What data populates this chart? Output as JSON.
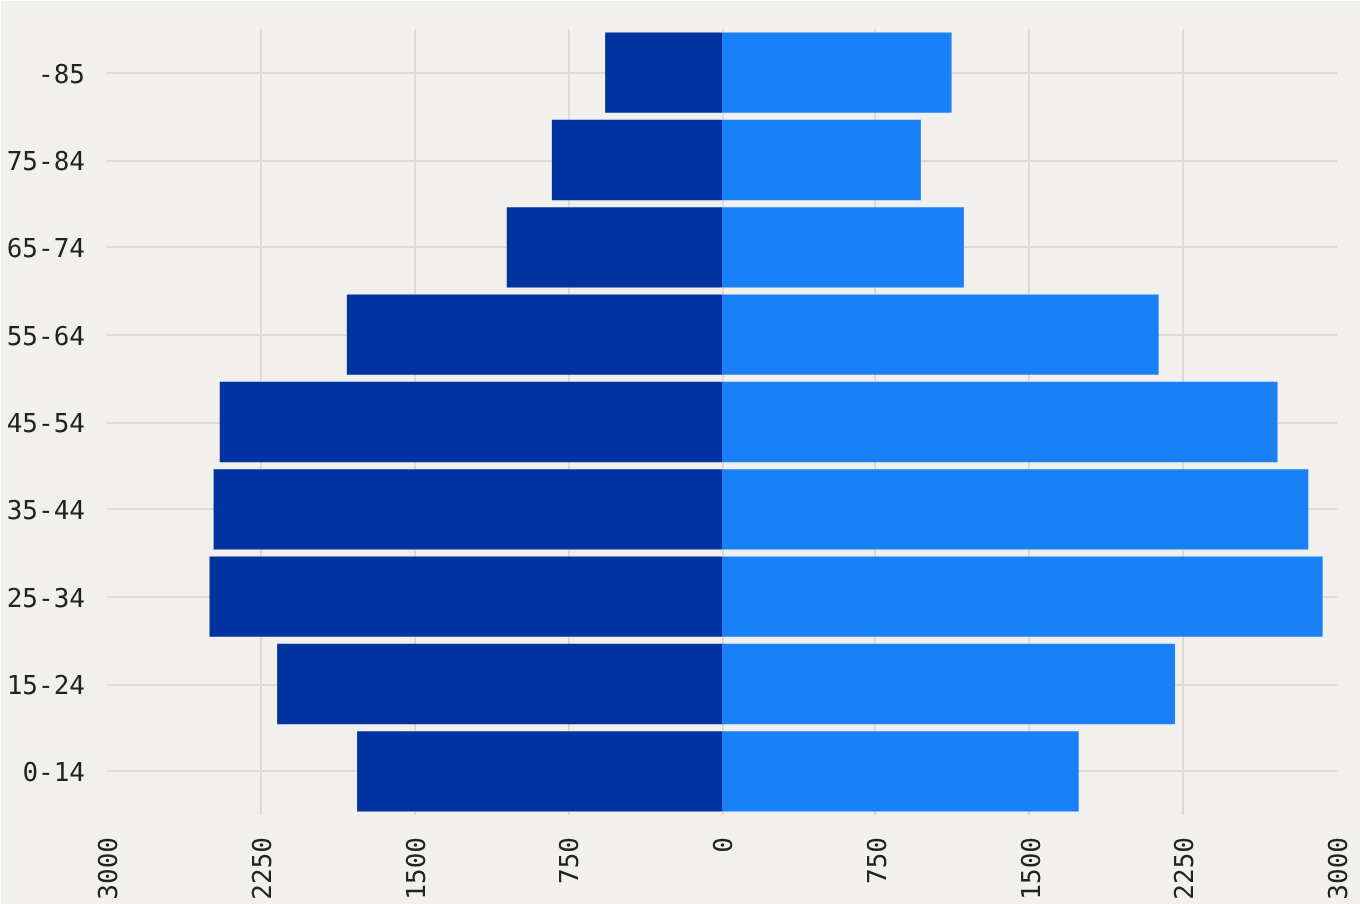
{
  "chart_data": {
    "type": "bar",
    "orientation": "horizontal",
    "categories": [
      "-85",
      "75-84",
      "65-74",
      "55-64",
      "45-54",
      "35-44",
      "25-34",
      "15-24",
      "0-14"
    ],
    "series": [
      {
        "color": "#0033a0",
        "values": [
          -570,
          -830,
          -1050,
          -1830,
          -2450,
          -2480,
          -2500,
          -2170,
          -1780
        ]
      },
      {
        "color": "#1a80f5",
        "values": [
          1120,
          970,
          1180,
          2130,
          2710,
          2860,
          2930,
          2210,
          1740
        ]
      }
    ],
    "stacked": true,
    "xlim": [
      -3000,
      3000
    ],
    "xticks": [
      {
        "value": -3000,
        "label": "3000"
      },
      {
        "value": -2250,
        "label": "2250"
      },
      {
        "value": -1500,
        "label": "1500"
      },
      {
        "value": -750,
        "label": "750"
      },
      0,
      750,
      1500,
      2250,
      3000
    ],
    "grid": true
  }
}
